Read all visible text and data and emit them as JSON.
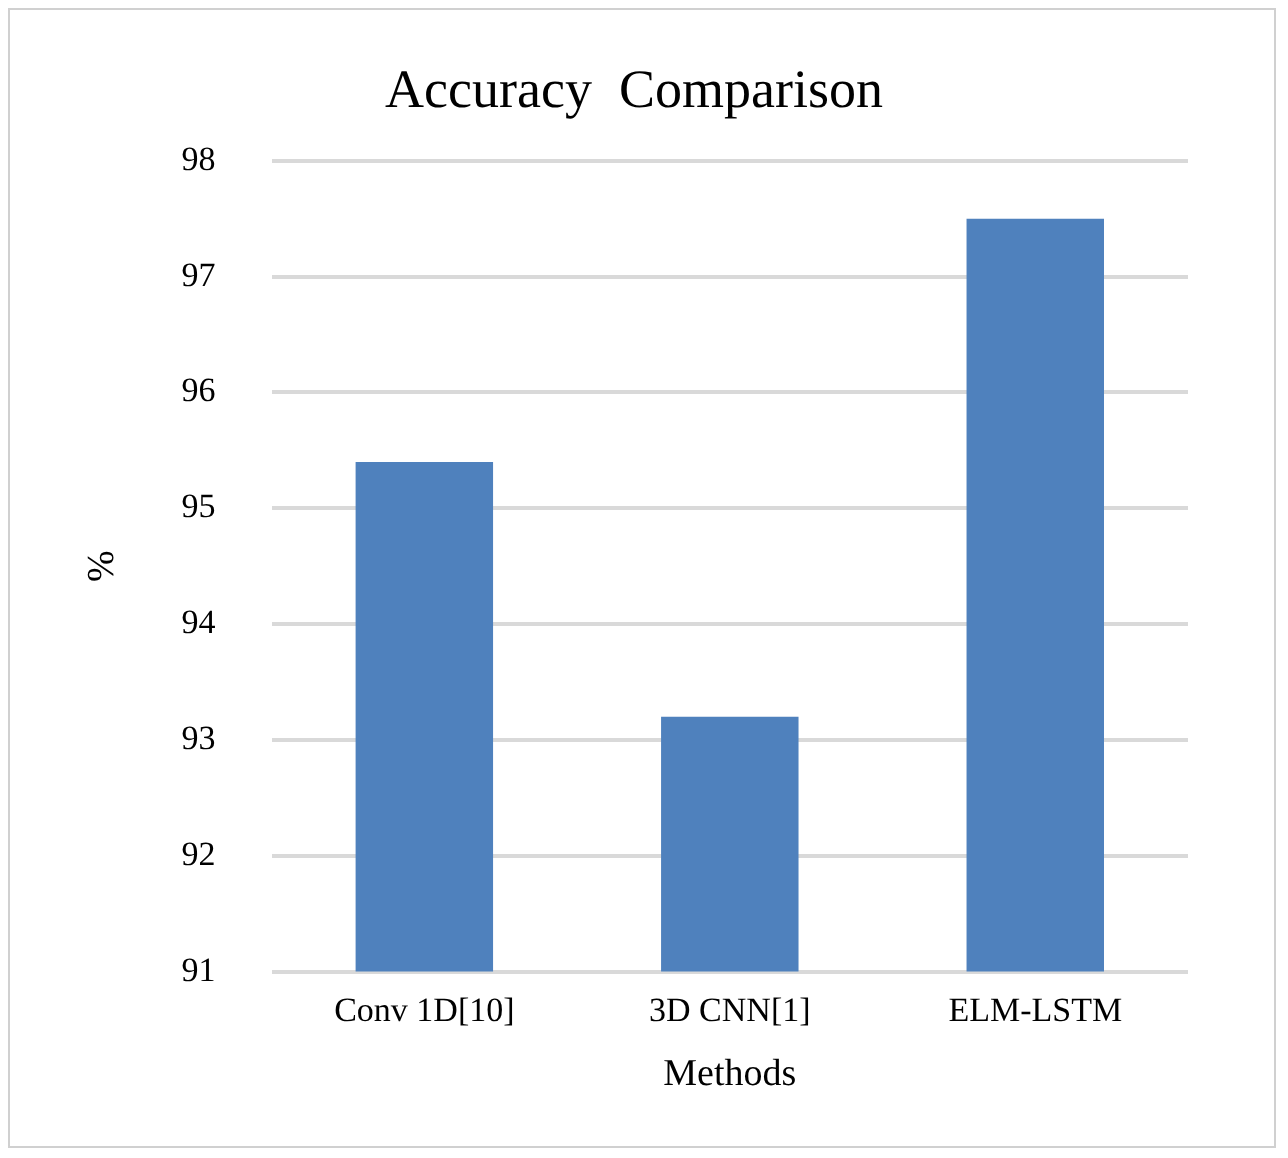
{
  "chart_data": {
    "type": "bar",
    "title": "Accuracy  Comparison",
    "xlabel": "Methods",
    "ylabel": "%",
    "categories": [
      "Conv 1D[10]",
      "3D CNN[1]",
      "ELM-LSTM"
    ],
    "series": [
      {
        "color": "#4f81bd",
        "values": [
          95.4,
          93.2,
          97.5
        ]
      }
    ],
    "ylim": [
      91,
      98
    ],
    "yticks": [
      91,
      92,
      93,
      94,
      95,
      96,
      97,
      98
    ],
    "grid": "y",
    "legend": false
  }
}
